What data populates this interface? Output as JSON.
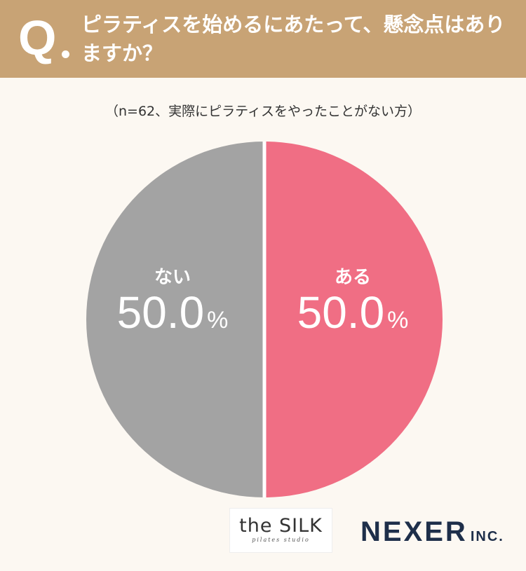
{
  "header": {
    "q_mark": "Q",
    "question": "ピラティスを始めるにあたって、懸念点はありますか？"
  },
  "sample_note": "（n=62、実際にピラティスをやったことがない方）",
  "chart_data": {
    "type": "pie",
    "slices": [
      {
        "label": "ある",
        "value": 50.0,
        "display": "50.0",
        "color": "#f06e84"
      },
      {
        "label": "ない",
        "value": 50.0,
        "display": "50.0",
        "color": "#a3a3a3"
      }
    ],
    "unit": "%",
    "separator_color": "#ffffff"
  },
  "logos": {
    "silk_main": "the SILK",
    "silk_sub": "pilates studio",
    "nexer_main": "NEXER",
    "nexer_inc": "INC."
  }
}
